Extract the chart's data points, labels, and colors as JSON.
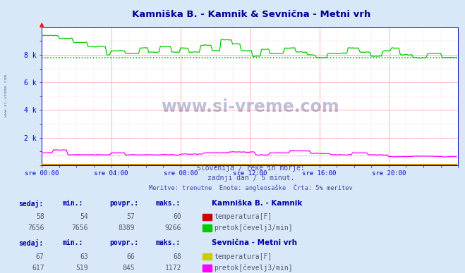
{
  "title": "Kamniška B. - Kamnik & Sevnična - Metni vrh",
  "title_color": "#000099",
  "bg_color": "#d8e8f8",
  "plot_bg_color": "#ffffff",
  "grid_major_color": "#ffaaaa",
  "grid_minor_color": "#ffdddd",
  "tick_label_color": "#0000aa",
  "axis_color": "#0000cc",
  "subtitle1": "Slovenija / reke in morje.",
  "subtitle2": "zadnji dan / 5 minut.",
  "subtitle3": "Meritve: trenutne  Enote: angleosaške  Črta: 5% meritev",
  "subtitle_color": "#4444aa",
  "xtick_labels": [
    "sre 00:00",
    "sre 04:00",
    "sre 08:00",
    "sre 12:00",
    "sre 16:00",
    "sre 20:00"
  ],
  "xtick_positions": [
    0,
    48,
    96,
    144,
    192,
    240
  ],
  "ytick_labels": [
    "2 k",
    "4 k",
    "6 k",
    "8 k"
  ],
  "ytick_positions": [
    2000,
    4000,
    6000,
    8000
  ],
  "ymin": 0,
  "ymax": 10000,
  "xmin": 0,
  "xmax": 288,
  "watermark": "www.si-vreme.com",
  "watermark_color": "#1a1a6e",
  "side_label": "www.si-vreme.com",
  "flow1_color": "#00cc00",
  "flow2_color": "#ff00ff",
  "temp1_color": "#cc0000",
  "temp2_color": "#cccc00",
  "avg1_color": "#009900",
  "avg1_value": 7800,
  "avg2_color": "#ff88ff",
  "avg2_value": 700,
  "table_header_color": "#0000aa",
  "table_val_color": "#555577",
  "station1_name": "Kamniška B. - Kamnik",
  "s1_sedaj": 58,
  "s1_min": 54,
  "s1_povpr": 57,
  "s1_maks": 60,
  "s1_color_temp": "#cc0000",
  "s1_sedaj2": 7656,
  "s1_min2": 7656,
  "s1_povpr2": 8389,
  "s1_maks2": 9266,
  "s1_color_flow": "#00cc00",
  "station2_name": "Sevnična - Metni vrh",
  "s2_sedaj": 67,
  "s2_min": 63,
  "s2_povpr": 66,
  "s2_maks": 68,
  "s2_color_temp": "#cccc00",
  "s2_sedaj2": 617,
  "s2_min2": 519,
  "s2_povpr2": 845,
  "s2_maks2": 1172,
  "s2_color_flow": "#ff00ff"
}
